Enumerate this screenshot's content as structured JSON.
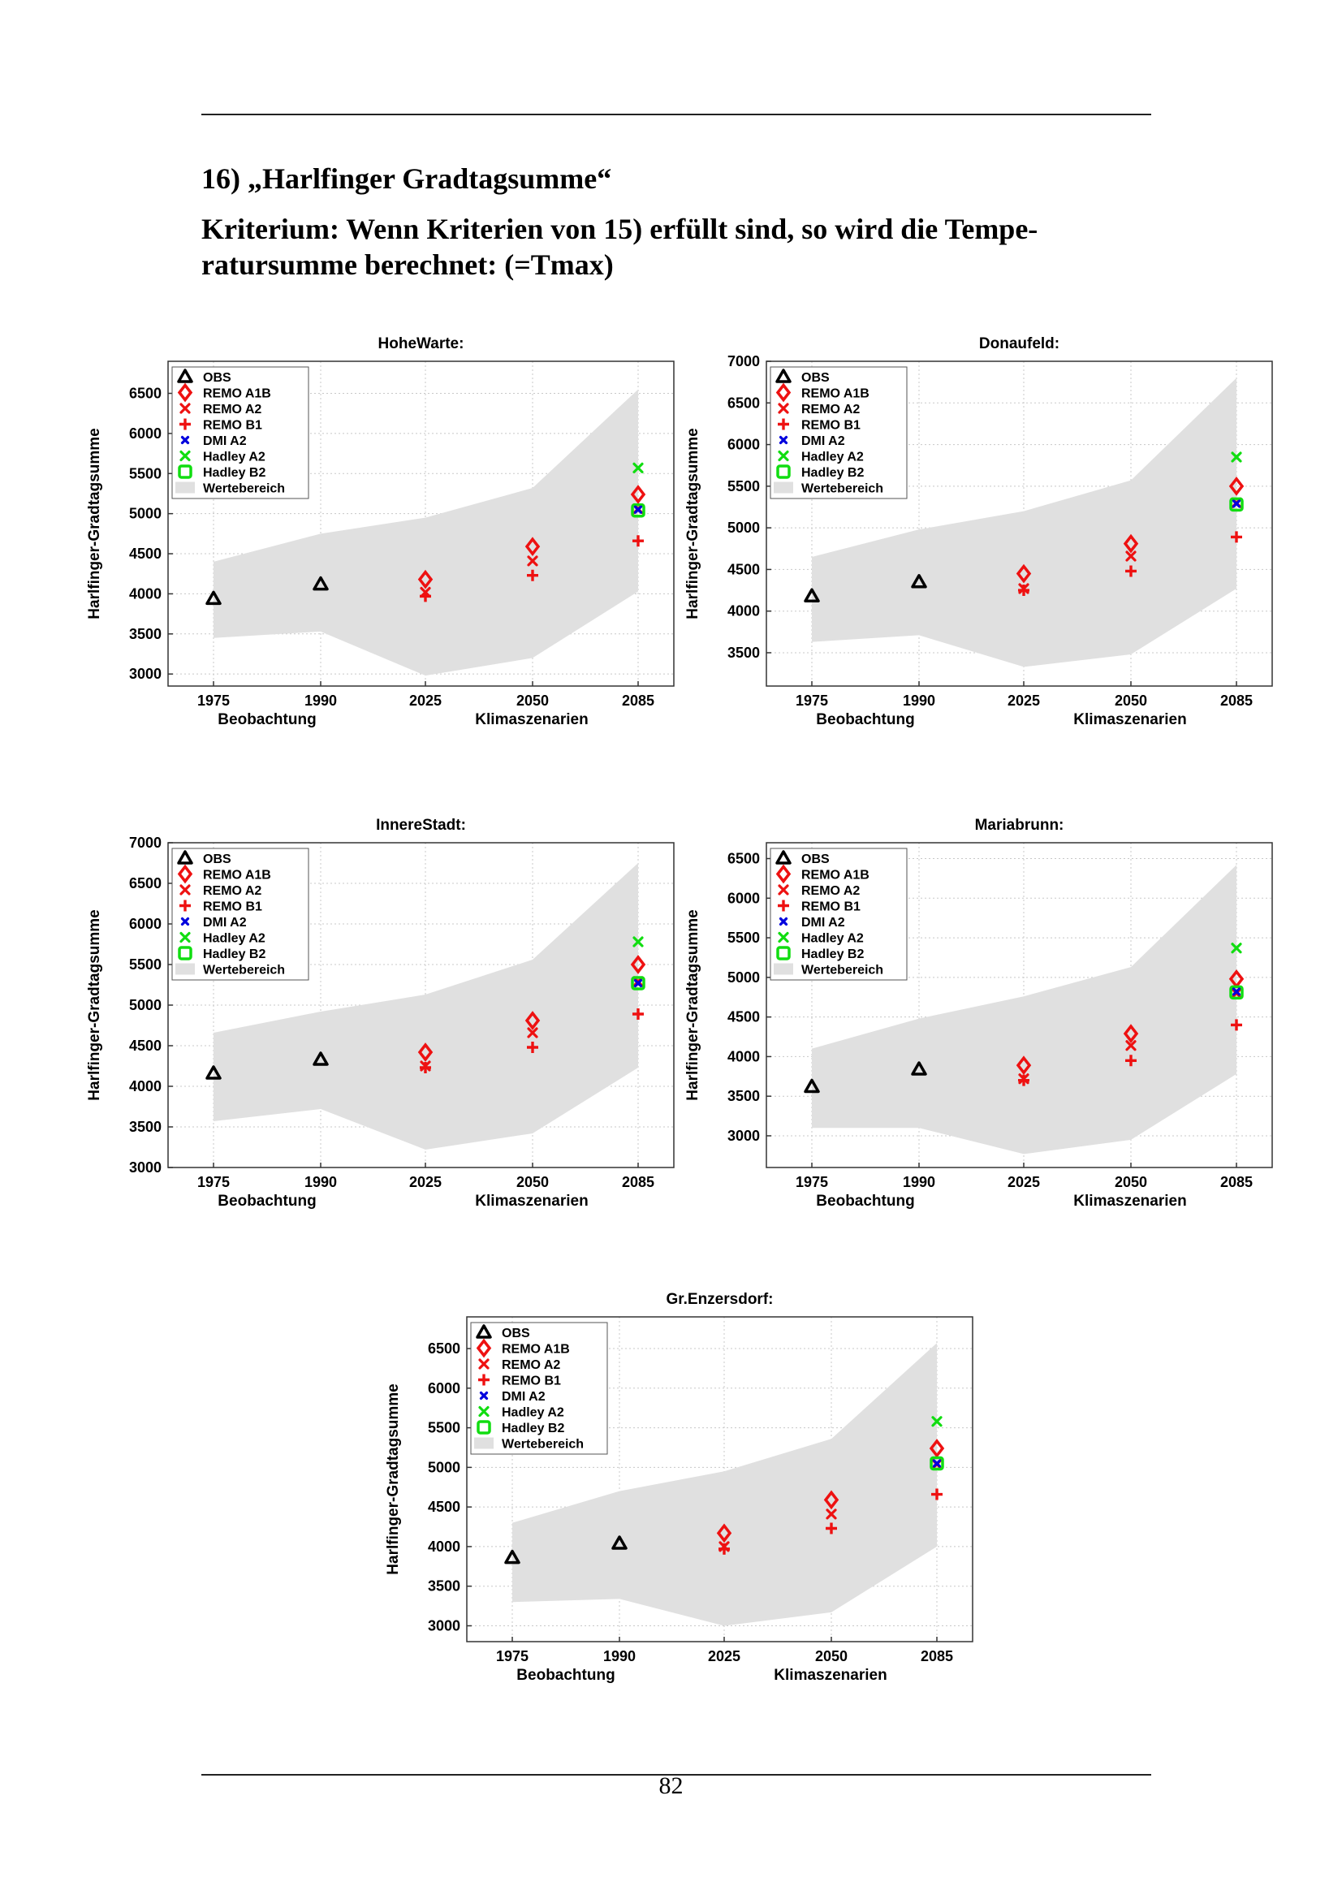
{
  "section": {
    "title": "16)  „Harlfinger Gradtagsumme“",
    "criterion_line1": "Kriterium: Wenn Kriterien von 15) erfüllt sind,  so wird die Tempe-",
    "criterion_line2": "ratursumme berechnet: (=Tmax)"
  },
  "page_number": "82",
  "colors": {
    "obs": "#000000",
    "remo": "#ee1111",
    "dmi": "#0000dd",
    "hadley": "#11dd11",
    "range": "#e0e0e0",
    "grid": "#c8c8c8"
  },
  "legend": [
    "OBS",
    "REMO A1B",
    "REMO A2",
    "REMO B1",
    "DMI A2",
    "Hadley A2",
    "Hadley B2",
    "Wertebereich"
  ],
  "chart_data": [
    {
      "type": "scatter",
      "title": "HoheWarte:",
      "ylabel": "Harlfinger-Gradtagsumme",
      "xlabel_left": "Beobachtung",
      "xlabel_right": "Klimaszenarien",
      "x": [
        1975,
        1990,
        2025,
        2050,
        2085
      ],
      "ylim": [
        2850,
        6900
      ],
      "yticks": [
        3000,
        3500,
        4000,
        4500,
        5000,
        5500,
        6000,
        6500
      ],
      "range_upper": [
        4400,
        4750,
        4950,
        5320,
        6550
      ],
      "range_lower": [
        3450,
        3530,
        2980,
        3200,
        4030
      ],
      "series": [
        {
          "name": "OBS",
          "x": [
            1975,
            1990
          ],
          "values": [
            3940,
            4120
          ]
        },
        {
          "name": "REMO A1B",
          "x": [
            2025,
            2050,
            2085
          ],
          "values": [
            4180,
            4590,
            5240
          ]
        },
        {
          "name": "REMO A2",
          "x": [
            2025,
            2050,
            2085
          ],
          "values": [
            4020,
            4410,
            5060
          ]
        },
        {
          "name": "REMO B1",
          "x": [
            2025,
            2050,
            2085
          ],
          "values": [
            3970,
            4230,
            4660
          ]
        },
        {
          "name": "DMI A2",
          "x": [
            2085
          ],
          "values": [
            5050
          ]
        },
        {
          "name": "Hadley A2",
          "x": [
            2085
          ],
          "values": [
            5570
          ]
        },
        {
          "name": "Hadley B2",
          "x": [
            2085
          ],
          "values": [
            5040
          ]
        }
      ]
    },
    {
      "type": "scatter",
      "title": "Donaufeld:",
      "ylabel": "Harlfinger-Gradtagsumme",
      "xlabel_left": "Beobachtung",
      "xlabel_right": "Klimaszenarien",
      "x": [
        1975,
        1990,
        2025,
        2050,
        2085
      ],
      "ylim": [
        3100,
        7000
      ],
      "yticks": [
        3500,
        4000,
        4500,
        5000,
        5500,
        6000,
        6500,
        7000
      ],
      "range_upper": [
        4650,
        4980,
        5200,
        5570,
        6800
      ],
      "range_lower": [
        3630,
        3710,
        3330,
        3480,
        4270
      ],
      "series": [
        {
          "name": "OBS",
          "x": [
            1975,
            1990
          ],
          "values": [
            4180,
            4350
          ]
        },
        {
          "name": "REMO A1B",
          "x": [
            2025,
            2050,
            2085
          ],
          "values": [
            4450,
            4810,
            5500
          ]
        },
        {
          "name": "REMO A2",
          "x": [
            2025,
            2050,
            2085
          ],
          "values": [
            4270,
            4660,
            5300
          ]
        },
        {
          "name": "REMO B1",
          "x": [
            2025,
            2050,
            2085
          ],
          "values": [
            4250,
            4480,
            4890
          ]
        },
        {
          "name": "DMI A2",
          "x": [
            2085
          ],
          "values": [
            5290
          ]
        },
        {
          "name": "Hadley A2",
          "x": [
            2085
          ],
          "values": [
            5850
          ]
        },
        {
          "name": "Hadley B2",
          "x": [
            2085
          ],
          "values": [
            5280
          ]
        }
      ]
    },
    {
      "type": "scatter",
      "title": "InnereStadt:",
      "ylabel": "Harlfinger-Gradtagsumme",
      "xlabel_left": "Beobachtung",
      "xlabel_right": "Klimaszenarien",
      "x": [
        1975,
        1990,
        2025,
        2050,
        2085
      ],
      "ylim": [
        3000,
        7000
      ],
      "yticks": [
        3000,
        3500,
        4000,
        4500,
        5000,
        5500,
        6000,
        6500,
        7000
      ],
      "range_upper": [
        4660,
        4920,
        5130,
        5560,
        6750
      ],
      "range_lower": [
        3570,
        3720,
        3220,
        3420,
        4230
      ],
      "series": [
        {
          "name": "OBS",
          "x": [
            1975,
            1990
          ],
          "values": [
            4160,
            4330
          ]
        },
        {
          "name": "REMO A1B",
          "x": [
            2025,
            2050,
            2085
          ],
          "values": [
            4420,
            4810,
            5500
          ]
        },
        {
          "name": "REMO A2",
          "x": [
            2025,
            2050,
            2085
          ],
          "values": [
            4250,
            4660,
            5290
          ]
        },
        {
          "name": "REMO B1",
          "x": [
            2025,
            2050,
            2085
          ],
          "values": [
            4230,
            4480,
            4890
          ]
        },
        {
          "name": "DMI A2",
          "x": [
            2085
          ],
          "values": [
            5270
          ]
        },
        {
          "name": "Hadley A2",
          "x": [
            2085
          ],
          "values": [
            5780
          ]
        },
        {
          "name": "Hadley B2",
          "x": [
            2085
          ],
          "values": [
            5270
          ]
        }
      ]
    },
    {
      "type": "scatter",
      "title": "Mariabrunn:",
      "ylabel": "Harlfinger-Gradtagsumme",
      "xlabel_left": "Beobachtung",
      "xlabel_right": "Klimaszenarien",
      "x": [
        1975,
        1990,
        2025,
        2050,
        2085
      ],
      "ylim": [
        2600,
        6700
      ],
      "yticks": [
        3000,
        3500,
        4000,
        4500,
        5000,
        5500,
        6000,
        6500
      ],
      "range_upper": [
        4100,
        4480,
        4760,
        5130,
        6420
      ],
      "range_lower": [
        3100,
        3100,
        2770,
        2950,
        3780
      ],
      "series": [
        {
          "name": "OBS",
          "x": [
            1975,
            1990
          ],
          "values": [
            3620,
            3840
          ]
        },
        {
          "name": "REMO A1B",
          "x": [
            2025,
            2050,
            2085
          ],
          "values": [
            3890,
            4290,
            4980
          ]
        },
        {
          "name": "REMO A2",
          "x": [
            2025,
            2050,
            2085
          ],
          "values": [
            3720,
            4140,
            4800
          ]
        },
        {
          "name": "REMO B1",
          "x": [
            2025,
            2050,
            2085
          ],
          "values": [
            3700,
            3950,
            4400
          ]
        },
        {
          "name": "DMI A2",
          "x": [
            2085
          ],
          "values": [
            4820
          ]
        },
        {
          "name": "Hadley A2",
          "x": [
            2085
          ],
          "values": [
            5370
          ]
        },
        {
          "name": "Hadley B2",
          "x": [
            2085
          ],
          "values": [
            4810
          ]
        }
      ]
    },
    {
      "type": "scatter",
      "title": "Gr.Enzersdorf:",
      "ylabel": "Harlfinger-Gradtagsumme",
      "xlabel_left": "Beobachtung",
      "xlabel_right": "Klimaszenarien",
      "x": [
        1975,
        1990,
        2025,
        2050,
        2085
      ],
      "ylim": [
        2800,
        6900
      ],
      "yticks": [
        3000,
        3500,
        4000,
        4500,
        5000,
        5500,
        6000,
        6500
      ],
      "range_upper": [
        4300,
        4700,
        4950,
        5360,
        6570
      ],
      "range_lower": [
        3300,
        3340,
        3000,
        3170,
        4000
      ],
      "series": [
        {
          "name": "OBS",
          "x": [
            1975,
            1990
          ],
          "values": [
            3860,
            4040
          ]
        },
        {
          "name": "REMO A1B",
          "x": [
            2025,
            2050,
            2085
          ],
          "values": [
            4170,
            4590,
            5240
          ]
        },
        {
          "name": "REMO A2",
          "x": [
            2025,
            2050,
            2085
          ],
          "values": [
            4000,
            4410,
            5040
          ]
        },
        {
          "name": "REMO B1",
          "x": [
            2025,
            2050,
            2085
          ],
          "values": [
            3970,
            4230,
            4660
          ]
        },
        {
          "name": "DMI A2",
          "x": [
            2085
          ],
          "values": [
            5050
          ]
        },
        {
          "name": "Hadley A2",
          "x": [
            2085
          ],
          "values": [
            5580
          ]
        },
        {
          "name": "Hadley B2",
          "x": [
            2085
          ],
          "values": [
            5050
          ]
        }
      ]
    }
  ]
}
